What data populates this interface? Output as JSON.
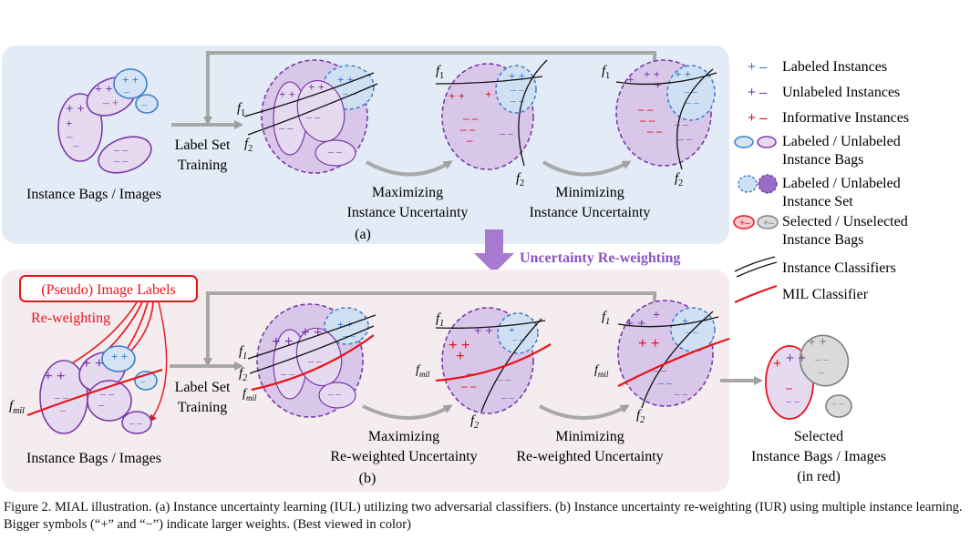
{
  "panel_a": {
    "bags_label": "Instance Bags / Images",
    "train_label_1": "Label Set",
    "train_label_2": "Training",
    "max_label_1": "Maximizing",
    "max_label_2": "Instance Uncertainty",
    "min_label_1": "Minimizing",
    "min_label_2": "Instance Uncertainty",
    "tag": "(a)"
  },
  "arrow_label": "Uncertainty Re-weighting",
  "panel_b": {
    "pseudo_label": "(Pseudo) Image Labels",
    "reweighting_label": "Re-weighting",
    "bags_label": "Instance Bags / Images",
    "train_label_1": "Label Set",
    "train_label_2": "Training",
    "max_label_1": "Maximizing",
    "max_label_2": "Re-weighted Uncertainty",
    "min_label_1": "Minimizing",
    "min_label_2": "Re-weighted Uncertainty",
    "selected_1": "Selected",
    "selected_2": "Instance Bags / Images",
    "selected_3": "(in red)",
    "tag": "(b)"
  },
  "legend": [
    {
      "text1": "Labeled Instances",
      "text2": ""
    },
    {
      "text1": "Unlabeled Instances",
      "text2": ""
    },
    {
      "text1": "Informative Instances",
      "text2": ""
    },
    {
      "text1": "Labeled / Unlabeled",
      "text2": "Instance Bags"
    },
    {
      "text1": "Labeled / Unlabeled",
      "text2": "Instance Set"
    },
    {
      "text1": "Selected / Unselected",
      "text2": "Instance Bags"
    },
    {
      "text1": "Instance Classifiers",
      "text2": ""
    },
    {
      "text1": "MIL Classifier",
      "text2": ""
    }
  ],
  "symbols": {
    "f1": "f",
    "f1_sub": "1",
    "f2": "f",
    "f2_sub": "2",
    "fmil": "f",
    "fmil_sub": "mil"
  },
  "caption": "Figure 2. MIAL illustration. (a) Instance uncertainty learning (IUL) utilizing two adversarial classifiers. (b) Instance uncertainty re-weighting (IUR) using multiple instance learning. Bigger symbols (“+” and “−”) indicate larger weights. (Best viewed in color)",
  "colors": {
    "panel_a_bg": "#e4ecf6",
    "panel_b_bg": "#f5eef1",
    "labeled": "#3a7dc9",
    "unlabeled": "#7b3aa8",
    "informative": "#e8141b",
    "gray": "#9a9a9a",
    "purple_arrow": "#9b6cc6"
  }
}
